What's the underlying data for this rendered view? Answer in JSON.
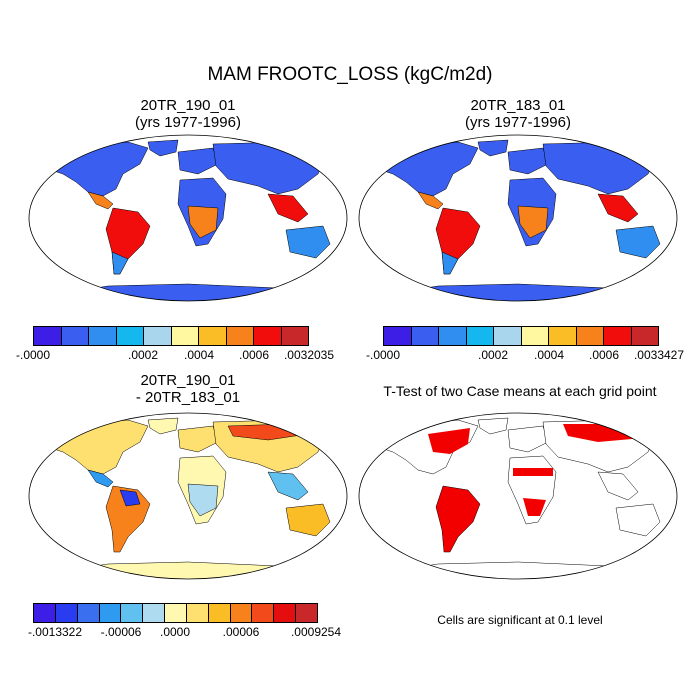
{
  "title": "MAM FROOTC_LOSS (kgC/m2d)",
  "panels": [
    {
      "title_line1": "20TR_190_01",
      "title_line2": "(yrs 1977-1996)"
    },
    {
      "title_line1": "20TR_183_01",
      "title_line2": "(yrs 1977-1996)"
    },
    {
      "title_line1": "20TR_190_01",
      "title_line2": "- 20TR_183_01"
    },
    {
      "title_line1": "T-Test of two Case means at each grid point"
    }
  ],
  "colorbars": [
    {
      "colors": [
        "#3c1ee6",
        "#3a5ef0",
        "#2f8ef0",
        "#14b8ef",
        "#a9d6ec",
        "#fff8a0",
        "#fbbd25",
        "#f7821c",
        "#f20d0d",
        "#c8282a"
      ],
      "labels": [
        "-.0000",
        ".0002",
        ".0004",
        ".0006",
        ".0032035"
      ]
    },
    {
      "colors": [
        "#3c1ee6",
        "#3a5ef0",
        "#2f8ef0",
        "#14b8ef",
        "#a9d6ec",
        "#fff8a0",
        "#fbbd25",
        "#f7821c",
        "#f20d0d",
        "#c8282a"
      ],
      "labels": [
        "-.0000",
        ".0002",
        ".0004",
        ".0006",
        ".0033427"
      ]
    },
    {
      "colors": [
        "#3c1ee6",
        "#2a3cf0",
        "#3a6ff0",
        "#2f9bf0",
        "#60c0ef",
        "#aedbf0",
        "#fff8b0",
        "#fde070",
        "#fbbd25",
        "#f7821c",
        "#f24a1a",
        "#e50e0e",
        "#c8282a"
      ],
      "labels": [
        "-.0013322",
        "-.00006",
        ".0000",
        ".00006",
        ".0009254"
      ]
    }
  ],
  "significance_note": "Cells are significant at 0.1 level",
  "palette": {
    "ocean": "#ffffff",
    "coast": "#000000",
    "land_low": "#3a5ef0",
    "land_high": "#f20d0d",
    "diff_neutral": "#fff8b0",
    "significant": "#f20000"
  }
}
